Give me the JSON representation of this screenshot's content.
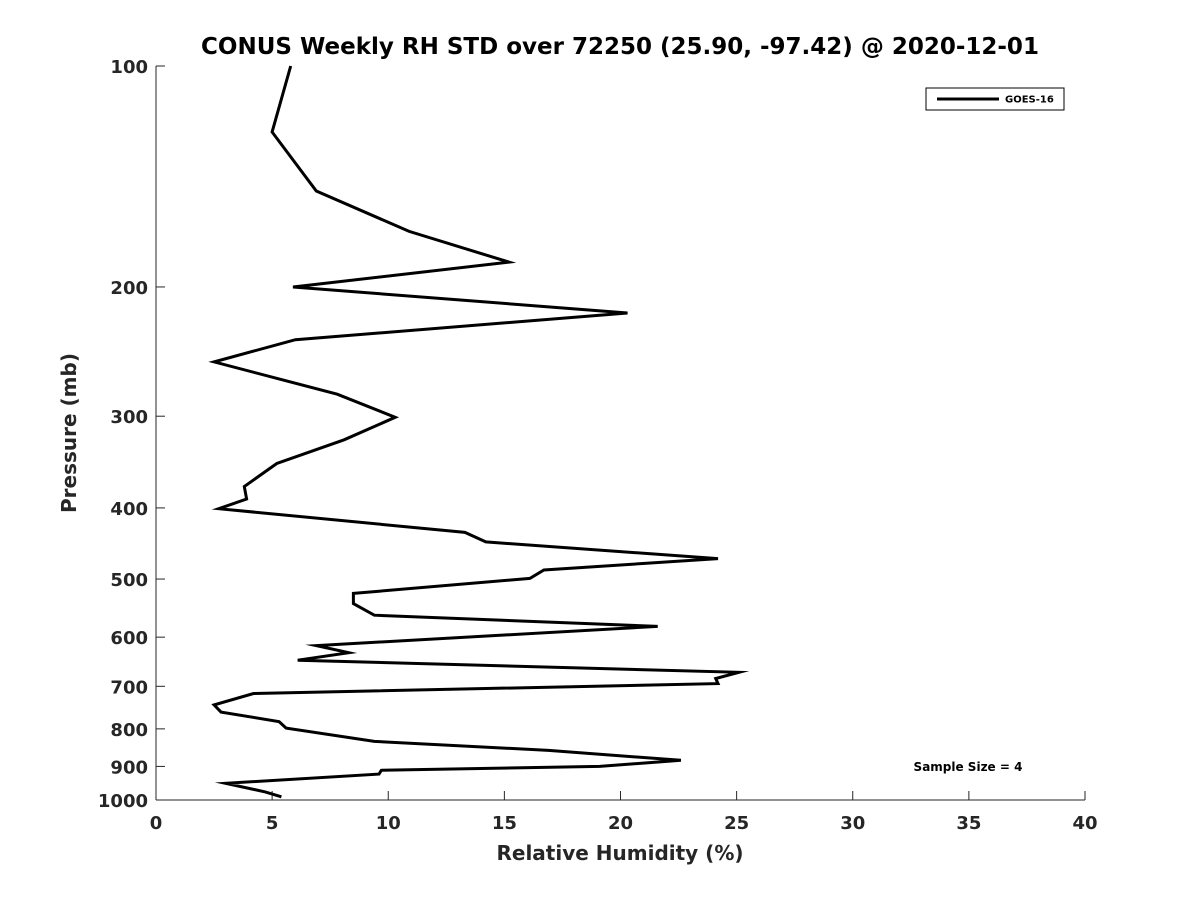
{
  "chart_data": {
    "type": "line",
    "title": "CONUS Weekly RH STD over 72250 (25.90, -97.42) @ 2020-12-01",
    "xlabel": "Relative Humidity (%)",
    "ylabel": "Pressure (mb)",
    "xlim": [
      0,
      40
    ],
    "ylim": [
      100,
      1000
    ],
    "yscale": "log",
    "yreversed": true,
    "x_ticks": [
      0,
      5,
      10,
      15,
      20,
      25,
      30,
      35,
      40
    ],
    "x_tick_labels": [
      "0",
      "5",
      "10",
      "15",
      "20",
      "25",
      "30",
      "35",
      "40"
    ],
    "y_ticks": [
      100,
      200,
      300,
      400,
      500,
      600,
      700,
      800,
      900,
      1000
    ],
    "y_tick_labels": [
      "100",
      "200",
      "300",
      "400",
      "500",
      "600",
      "700",
      "800",
      "900",
      "1000"
    ],
    "grid": false,
    "legend": {
      "position": "top-right",
      "entries": [
        "GOES-16"
      ]
    },
    "annotation": "Sample Size = 4",
    "series": [
      {
        "name": "GOES-16",
        "color": "#000000",
        "x": [
          5.8,
          5.0,
          6.9,
          10.9,
          15.2,
          5.9,
          20.3,
          6.0,
          2.5,
          7.8,
          10.3,
          8.1,
          5.2,
          3.8,
          3.9,
          2.7,
          13.3,
          14.2,
          24.2,
          16.7,
          16.1,
          8.5,
          8.5,
          9.4,
          21.6,
          6.9,
          8.3,
          6.1,
          25.1,
          24.1,
          24.2,
          4.2,
          2.5,
          2.8,
          5.3,
          5.6,
          9.4,
          16.9,
          22.6,
          19.1,
          9.7,
          9.6,
          3.0,
          4.7,
          5.4
        ],
        "y": [
          100,
          123,
          148,
          168,
          185,
          200,
          217,
          236,
          253,
          280,
          301,
          323,
          348,
          374,
          389,
          401,
          432,
          445,
          469,
          486,
          499,
          523,
          540,
          560,
          580,
          616,
          630,
          645,
          670,
          683,
          694,
          716,
          742,
          759,
          782,
          798,
          832,
          856,
          883,
          900,
          911,
          922,
          949,
          975,
          990
        ]
      }
    ]
  }
}
